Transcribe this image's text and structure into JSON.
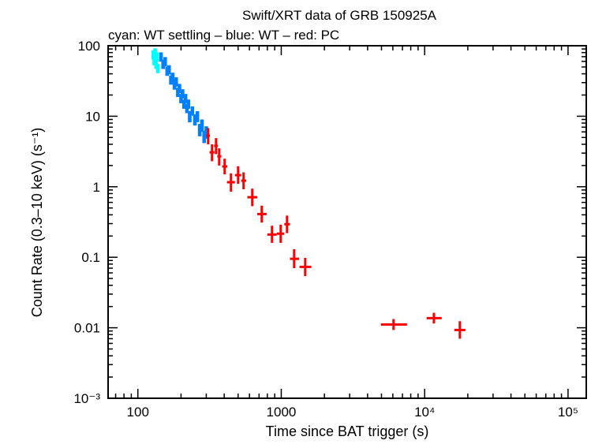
{
  "chart_data": {
    "type": "scatter",
    "title": "Swift/XRT data of GRB 150925A",
    "subtitle": "cyan: WT settling – blue: WT – red: PC",
    "xlabel": "Time since BAT trigger (s)",
    "ylabel": "Count Rate (0.3–10 keV) (s⁻¹)",
    "xscale": "log",
    "yscale": "log",
    "xlim": [
      62,
      134000
    ],
    "ylim": [
      0.001,
      100
    ],
    "grid": false,
    "x_ticks": [
      {
        "value": 100,
        "label": "100"
      },
      {
        "value": 1000,
        "label": "1000"
      },
      {
        "value": 10000,
        "label": "10⁴"
      },
      {
        "value": 100000,
        "label": "10⁵"
      }
    ],
    "y_ticks": [
      {
        "value": 100,
        "label": "100"
      },
      {
        "value": 10,
        "label": "10"
      },
      {
        "value": 1,
        "label": "1"
      },
      {
        "value": 0.1,
        "label": "0.1"
      },
      {
        "value": 0.01,
        "label": "0.01"
      },
      {
        "value": 0.001,
        "label": "10⁻³"
      }
    ],
    "series": [
      {
        "mode": "WT settling",
        "color": "#00ffff",
        "points": [
          [
            128,
            75,
            0.15
          ],
          [
            130,
            62,
            0.15
          ],
          [
            132,
            80,
            0.15
          ],
          [
            134,
            55,
            0.15
          ],
          [
            136,
            70,
            0.15
          ],
          [
            138,
            48,
            0.15
          ]
        ]
      },
      {
        "mode": "WT",
        "color": "#0080ff",
        "points": [
          [
            145,
            70,
            0.15
          ],
          [
            150,
            55,
            0.15
          ],
          [
            155,
            60,
            0.15
          ],
          [
            160,
            44,
            0.15
          ],
          [
            165,
            46,
            0.15
          ],
          [
            170,
            33,
            0.15
          ],
          [
            175,
            36,
            0.15
          ],
          [
            180,
            28,
            0.15
          ],
          [
            185,
            31,
            0.15
          ],
          [
            190,
            22,
            0.15
          ],
          [
            195,
            25,
            0.15
          ],
          [
            200,
            18,
            0.15
          ],
          [
            205,
            21,
            0.15
          ],
          [
            210,
            15,
            0.15
          ],
          [
            215,
            18,
            0.15
          ],
          [
            220,
            13,
            0.15
          ],
          [
            225,
            15,
            0.15
          ],
          [
            230,
            10,
            0.18
          ],
          [
            240,
            12,
            0.15
          ],
          [
            250,
            9,
            0.18
          ],
          [
            260,
            10,
            0.18
          ],
          [
            270,
            6.5,
            0.2
          ],
          [
            280,
            7.5,
            0.2
          ],
          [
            290,
            5.2,
            0.2
          ],
          [
            300,
            6,
            0.2
          ]
        ]
      },
      {
        "mode": "PC",
        "color": "#ff0000",
        "points": [
          {
            "x": 309,
            "xlo": 300,
            "xhi": 318,
            "y": 5.3,
            "ylo": 4.0,
            "yhi": 6.8
          },
          {
            "x": 351,
            "xlo": 340,
            "xhi": 362,
            "y": 3.8,
            "ylo": 2.9,
            "yhi": 4.9
          },
          {
            "x": 329,
            "xlo": 316,
            "xhi": 342,
            "y": 3.08,
            "ylo": 2.3,
            "yhi": 4.0
          },
          {
            "x": 369,
            "xlo": 358,
            "xhi": 382,
            "y": 2.7,
            "ylo": 2.0,
            "yhi": 3.5
          },
          {
            "x": 403,
            "xlo": 387,
            "xhi": 420,
            "y": 1.94,
            "ylo": 1.5,
            "yhi": 2.5
          },
          {
            "x": 446,
            "xlo": 418,
            "xhi": 475,
            "y": 1.16,
            "ylo": 0.85,
            "yhi": 1.55
          },
          {
            "x": 500,
            "xlo": 475,
            "xhi": 525,
            "y": 1.46,
            "ylo": 1.1,
            "yhi": 1.95
          },
          {
            "x": 546,
            "xlo": 525,
            "xhi": 570,
            "y": 1.22,
            "ylo": 0.92,
            "yhi": 1.6
          },
          {
            "x": 628,
            "xlo": 580,
            "xhi": 680,
            "y": 0.71,
            "ylo": 0.53,
            "yhi": 0.94
          },
          {
            "x": 731,
            "xlo": 680,
            "xhi": 790,
            "y": 0.41,
            "ylo": 0.31,
            "yhi": 0.54
          },
          {
            "x": 862,
            "xlo": 800,
            "xhi": 930,
            "y": 0.21,
            "ylo": 0.16,
            "yhi": 0.28
          },
          {
            "x": 991,
            "xlo": 930,
            "xhi": 1050,
            "y": 0.216,
            "ylo": 0.16,
            "yhi": 0.29
          },
          {
            "x": 1097,
            "xlo": 1050,
            "xhi": 1150,
            "y": 0.294,
            "ylo": 0.22,
            "yhi": 0.39
          },
          {
            "x": 1230,
            "xlo": 1150,
            "xhi": 1330,
            "y": 0.095,
            "ylo": 0.07,
            "yhi": 0.13
          },
          {
            "x": 1469,
            "xlo": 1340,
            "xhi": 1620,
            "y": 0.073,
            "ylo": 0.054,
            "yhi": 0.098
          },
          {
            "x": 6070,
            "xlo": 4955,
            "xhi": 7530,
            "y": 0.0111,
            "ylo": 0.0093,
            "yhi": 0.0133
          },
          {
            "x": 11600,
            "xlo": 10330,
            "xhi": 13150,
            "y": 0.0137,
            "ylo": 0.0115,
            "yhi": 0.0163
          },
          {
            "x": 17600,
            "xlo": 16100,
            "xhi": 19230,
            "y": 0.0093,
            "ylo": 0.007,
            "yhi": 0.0124
          }
        ]
      }
    ]
  }
}
